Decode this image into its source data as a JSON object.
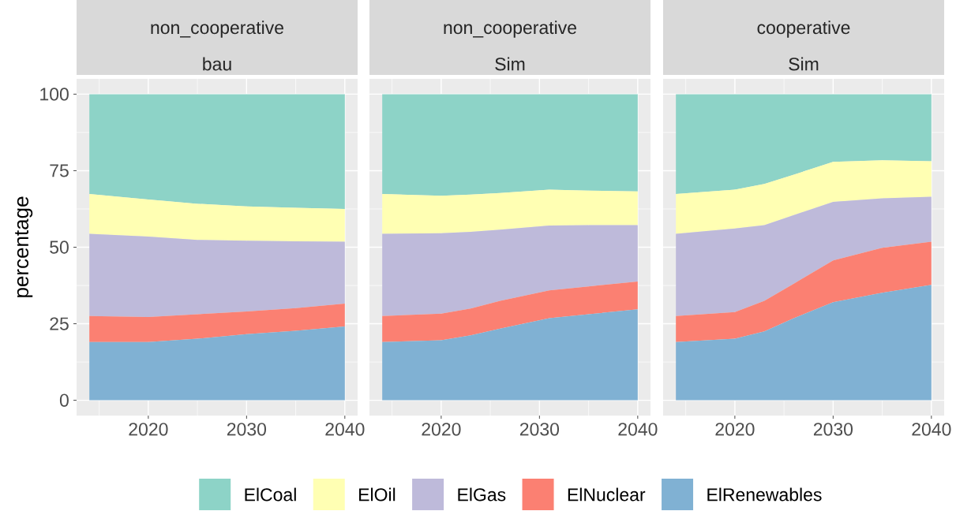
{
  "chart_data": [
    {
      "type": "area",
      "title": "non_cooperative",
      "subtitle": "bau",
      "ylabel": "percentage",
      "stacked": true,
      "grid": true,
      "legend": "bottom",
      "x": [
        2014,
        2020,
        2025,
        2030,
        2035,
        2040
      ],
      "xlim": [
        2012.7,
        2041.3
      ],
      "ylim": [
        -5,
        105
      ],
      "xticks": [
        2020,
        2030,
        2040
      ],
      "yticks": [
        0,
        25,
        50,
        75,
        100
      ],
      "series": [
        {
          "name": "ElRenewables",
          "color": "#80b1d3",
          "values": [
            19.0,
            19.0,
            20.1,
            21.6,
            22.7,
            24.1
          ]
        },
        {
          "name": "ElNuclear",
          "color": "#fb8072",
          "values": [
            8.5,
            8.2,
            8.0,
            7.4,
            7.4,
            7.5
          ]
        },
        {
          "name": "ElGas",
          "color": "#bebada",
          "values": [
            26.9,
            26.3,
            24.3,
            23.1,
            21.8,
            20.2
          ]
        },
        {
          "name": "ElOil",
          "color": "#ffffb3",
          "values": [
            13.0,
            12.1,
            11.8,
            11.2,
            11.0,
            10.7
          ]
        },
        {
          "name": "ElCoal",
          "color": "#8dd3c7",
          "values": [
            32.6,
            34.4,
            35.8,
            36.7,
            37.1,
            37.5
          ]
        }
      ]
    },
    {
      "type": "area",
      "title": "non_cooperative",
      "subtitle": "Sim",
      "stacked": true,
      "grid": true,
      "tick_labels": "x",
      "x": [
        2014,
        2020,
        2023,
        2026,
        2031,
        2035,
        2040
      ],
      "xlim": [
        2012.7,
        2041.3
      ],
      "ylim": [
        -5,
        105
      ],
      "xticks": [
        2020,
        2030,
        2040
      ],
      "yticks": [
        0,
        25,
        50,
        75,
        100
      ],
      "series": [
        {
          "color": "#80b1d3",
          "values": [
            19.0,
            19.6,
            21.2,
            23.4,
            26.8,
            28.1,
            29.7
          ]
        },
        {
          "color": "#fb8072",
          "values": [
            8.5,
            8.7,
            8.8,
            9.1,
            9.1,
            9.1,
            9.1
          ]
        },
        {
          "color": "#bebada",
          "values": [
            26.9,
            26.3,
            25.0,
            23.2,
            21.2,
            20.0,
            18.4
          ]
        },
        {
          "color": "#ffffb3",
          "values": [
            13.0,
            12.2,
            12.2,
            12.0,
            11.7,
            11.3,
            11.0
          ]
        },
        {
          "color": "#8dd3c7",
          "values": [
            32.6,
            33.2,
            32.8,
            32.3,
            31.2,
            31.5,
            31.8
          ]
        }
      ]
    },
    {
      "type": "area",
      "title": "cooperative",
      "subtitle": "Sim",
      "stacked": true,
      "grid": true,
      "tick_labels": "x",
      "x": [
        2014,
        2020,
        2023,
        2026,
        2030,
        2035,
        2040
      ],
      "xlim": [
        2012.7,
        2041.3
      ],
      "ylim": [
        -5,
        105
      ],
      "xticks": [
        2020,
        2030,
        2040
      ],
      "yticks": [
        0,
        25,
        50,
        75,
        100
      ],
      "series": [
        {
          "color": "#80b1d3",
          "values": [
            19.0,
            20.1,
            22.5,
            26.8,
            32.0,
            35.1,
            37.7
          ]
        },
        {
          "color": "#fb8072",
          "values": [
            8.5,
            8.7,
            10.0,
            11.3,
            13.7,
            14.7,
            14.1
          ]
        },
        {
          "color": "#bebada",
          "values": [
            26.9,
            27.3,
            24.7,
            22.4,
            19.1,
            16.2,
            14.7
          ]
        },
        {
          "color": "#ffffb3",
          "values": [
            13.0,
            12.7,
            13.5,
            13.2,
            13.1,
            12.4,
            11.6
          ]
        },
        {
          "color": "#8dd3c7",
          "values": [
            32.6,
            31.2,
            29.3,
            26.3,
            22.1,
            21.6,
            21.9
          ]
        }
      ]
    }
  ]
}
